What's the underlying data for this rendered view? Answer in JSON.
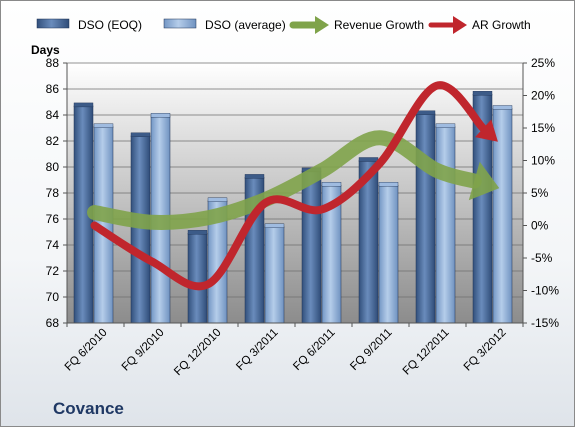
{
  "brand": "Covance",
  "chart_data": {
    "type": "bar",
    "title": "",
    "ylabel": "Days",
    "ylim": [
      68,
      88
    ],
    "y2lim": [
      -0.15,
      0.25
    ],
    "y_ticks": [
      "68",
      "70",
      "72",
      "74",
      "76",
      "78",
      "80",
      "82",
      "84",
      "86",
      "88"
    ],
    "y2_ticks": [
      "-15%",
      "-10%",
      "-5%",
      "0%",
      "5%",
      "10%",
      "15%",
      "20%",
      "25%"
    ],
    "categories": [
      "FQ 6/2010",
      "FQ 9/2010",
      "FQ 12/2010",
      "FQ 3/2011",
      "FQ 6/2011",
      "FQ 9/2011",
      "FQ 12/2011",
      "FQ 3/2012"
    ],
    "series": [
      {
        "name": "DSO (EOQ)",
        "kind": "bar",
        "axis": "left",
        "color": "#4a6896",
        "values": [
          84.7,
          82.4,
          74.9,
          79.2,
          79.7,
          80.5,
          84.1,
          85.6
        ]
      },
      {
        "name": "DSO (average)",
        "kind": "bar",
        "axis": "left",
        "color": "#93b1d6",
        "values": [
          83.1,
          83.9,
          77.4,
          75.4,
          78.6,
          78.6,
          83.1,
          84.5
        ]
      },
      {
        "name": "Revenue Growth",
        "kind": "arrow",
        "axis": "right",
        "color": "#7fa34a",
        "values": [
          0.02,
          0.005,
          0.012,
          0.04,
          0.085,
          0.135,
          0.085,
          0.06
        ]
      },
      {
        "name": "AR Growth",
        "kind": "arrow",
        "axis": "right",
        "color": "#c0262d",
        "values": [
          0.0,
          -0.055,
          -0.09,
          0.035,
          0.025,
          0.095,
          0.215,
          0.135
        ]
      }
    ],
    "grid": true,
    "legend": "top"
  }
}
